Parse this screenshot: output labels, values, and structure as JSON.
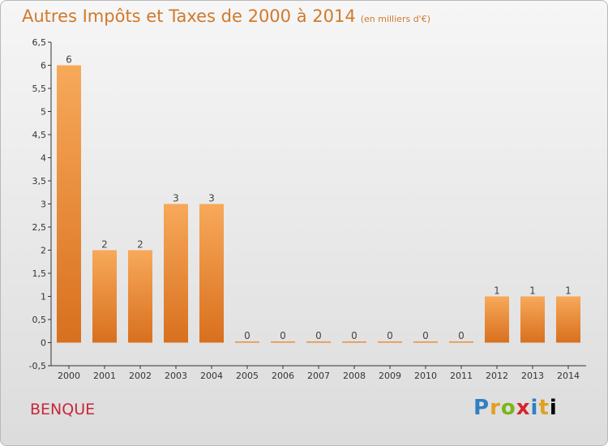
{
  "header": {
    "title": "Autres Impôts et Taxes de 2000 à 2014",
    "unit": "(en milliers d'€)"
  },
  "footer": {
    "place": "BENQUE",
    "logo": [
      "P",
      "r",
      "o",
      "x",
      "i",
      "t",
      "i"
    ]
  },
  "colors": {
    "bar_top": "#f7a95a",
    "bar_bottom": "#d8701e",
    "title": "#d07a2c",
    "place": "#c8283a"
  },
  "chart_data": {
    "type": "bar",
    "title": "Autres Impôts et Taxes de 2000 à 2014",
    "subtitle": "(en milliers d'€)",
    "xlabel": "",
    "ylabel": "",
    "categories": [
      "2000",
      "2001",
      "2002",
      "2003",
      "2004",
      "2005",
      "2006",
      "2007",
      "2008",
      "2009",
      "2010",
      "2011",
      "2012",
      "2013",
      "2014"
    ],
    "values": [
      6,
      2,
      2,
      3,
      3,
      0,
      0,
      0,
      0,
      0,
      0,
      0,
      1,
      1,
      1
    ],
    "data_labels": [
      "6",
      "2",
      "2",
      "3",
      "3",
      "0",
      "0",
      "0",
      "0",
      "0",
      "0",
      "0",
      "1",
      "1",
      "1"
    ],
    "ylim": [
      -0.5,
      6.5
    ],
    "yticks": [
      -0.5,
      0,
      0.5,
      1,
      1.5,
      2,
      2.5,
      3,
      3.5,
      4,
      4.5,
      5,
      5.5,
      6,
      6.5
    ],
    "ytick_labels": [
      "-0,5",
      "0",
      "0,5",
      "1",
      "1,5",
      "2",
      "2,5",
      "3",
      "3,5",
      "4",
      "4,5",
      "5",
      "5,5",
      "6",
      "6,5"
    ],
    "grid": false,
    "legend": "none"
  }
}
